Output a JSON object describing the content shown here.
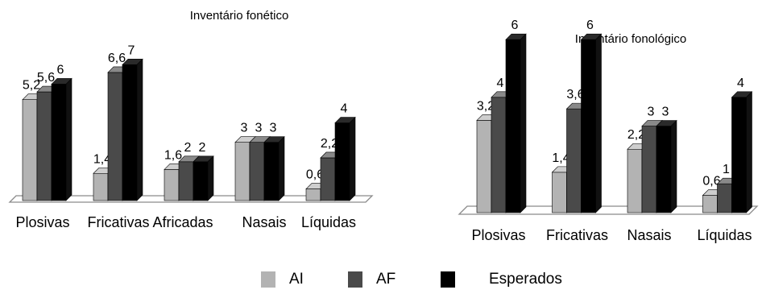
{
  "series_names": [
    "AI",
    "AF",
    "Esperados"
  ],
  "colors": {
    "AI": "#b3b3b3",
    "AF": "#4a4a4a",
    "Esperados": "#000000"
  },
  "chart_data": [
    {
      "type": "bar",
      "title": "Inventário fonético",
      "categories": [
        "Plosivas",
        "Fricativas",
        "Africadas",
        "Nasais",
        "Líquidas"
      ],
      "series": [
        {
          "name": "AI",
          "values": [
            5.2,
            1.4,
            1.6,
            3,
            0.6
          ],
          "labels": [
            "5,2",
            "1,4",
            "1,6",
            "3",
            "0,6"
          ]
        },
        {
          "name": "AF",
          "values": [
            5.6,
            6.6,
            2,
            3,
            2.2
          ],
          "labels": [
            "5,6",
            "6,6",
            "2",
            "3",
            "2,2"
          ]
        },
        {
          "name": "Esperados",
          "values": [
            6,
            7,
            2,
            3,
            4
          ],
          "labels": [
            "6",
            "7",
            "2",
            "3",
            "4"
          ]
        }
      ],
      "xlabel": "",
      "ylabel": "",
      "ylim": [
        0,
        7
      ],
      "grid": false,
      "legend": "bottom"
    },
    {
      "type": "bar",
      "title": "Inventário fonológico",
      "categories": [
        "Plosivas",
        "Fricativas",
        "Nasais",
        "Líquidas"
      ],
      "series": [
        {
          "name": "AI",
          "values": [
            3.2,
            1.4,
            2.2,
            0.6
          ],
          "labels": [
            "3,2",
            "1,4",
            "2,2",
            "0,6"
          ]
        },
        {
          "name": "AF",
          "values": [
            4,
            3.6,
            3,
            1
          ],
          "labels": [
            "4",
            "3,6",
            "3",
            "1"
          ]
        },
        {
          "name": "Esperados",
          "values": [
            6,
            6,
            3,
            4
          ],
          "labels": [
            "6",
            "6",
            "3",
            "4"
          ]
        }
      ],
      "xlabel": "",
      "ylabel": "",
      "ylim": [
        0,
        6
      ],
      "grid": false,
      "legend": "bottom"
    }
  ]
}
